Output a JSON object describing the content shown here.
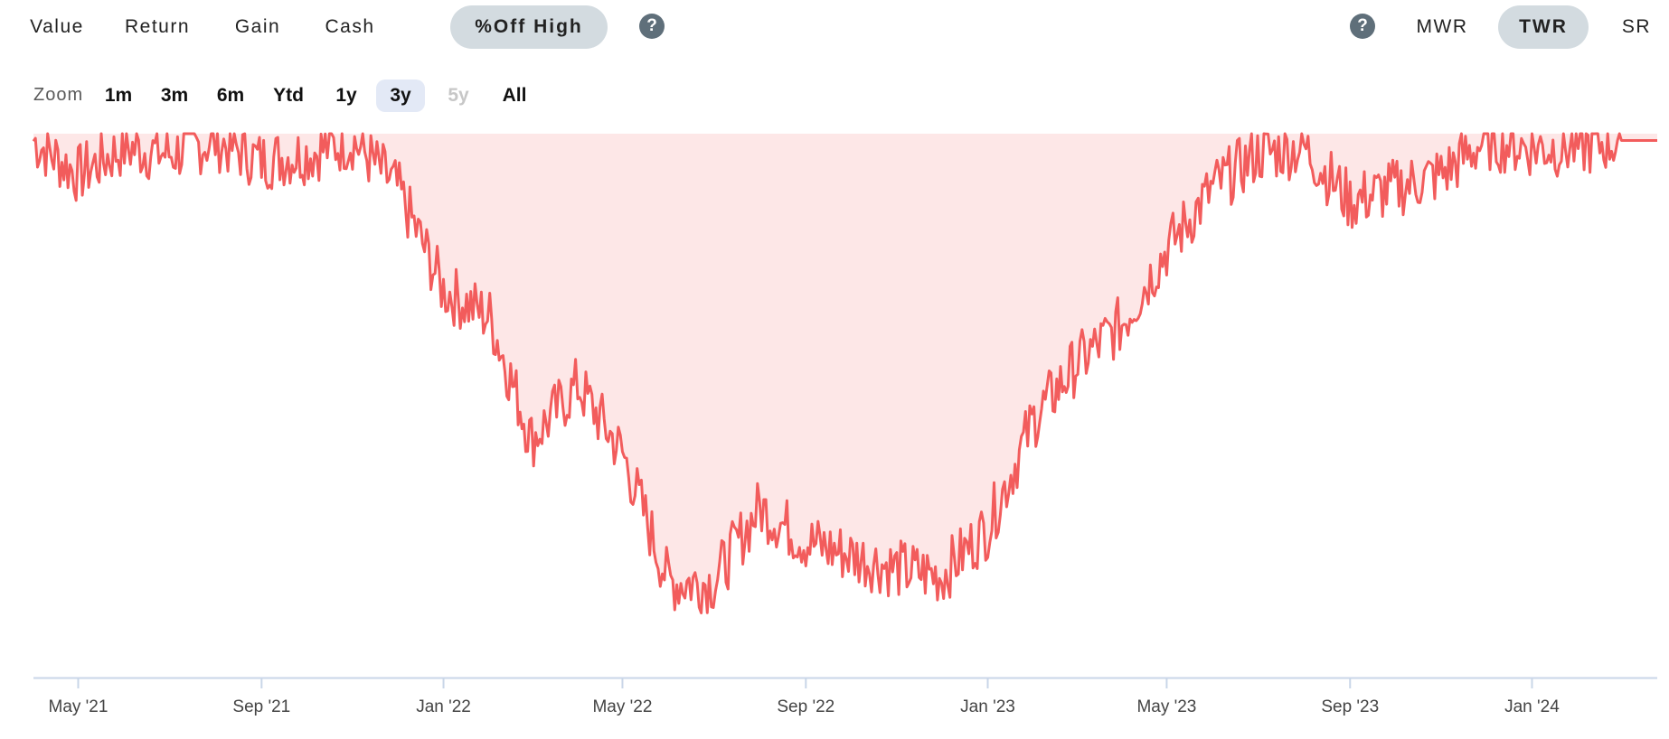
{
  "tabs": {
    "value": "Value",
    "return": "Return",
    "gain": "Gain",
    "cash": "Cash",
    "off_high": "%Off High"
  },
  "help_glyph": "?",
  "return_modes": {
    "mwr": "MWR",
    "twr": "TWR",
    "sr": "SR"
  },
  "zoom": {
    "label": "Zoom",
    "options": [
      "1m",
      "3m",
      "6m",
      "Ytd",
      "1y",
      "3y",
      "5y",
      "All"
    ],
    "selected": "3y",
    "disabled": "5y"
  },
  "colors": {
    "line": "#f25c5c",
    "fill": "#fde7e7",
    "axis": "#c9d6e8",
    "active_tab": "#d3dbe0"
  },
  "chart_data": {
    "type": "area",
    "title": "",
    "xlabel": "",
    "ylabel": "",
    "x_tick_labels": [
      "May '21",
      "Sep '21",
      "Jan '22",
      "May '22",
      "Sep '22",
      "Jan '23",
      "May '23",
      "Sep '23",
      "Jan '24"
    ],
    "x": [
      "2021-04",
      "2021-05",
      "2021-06",
      "2021-07",
      "2021-08",
      "2021-09",
      "2021-10",
      "2021-11",
      "2021-12",
      "2022-01",
      "2022-02",
      "2022-03",
      "2022-04",
      "2022-05",
      "2022-06",
      "2022-07",
      "2022-08",
      "2022-09",
      "2022-10",
      "2022-11",
      "2022-12",
      "2023-01",
      "2023-02",
      "2023-03",
      "2023-04",
      "2023-05",
      "2023-06",
      "2023-07",
      "2023-08",
      "2023-09",
      "2023-10",
      "2023-11",
      "2023-12",
      "2024-01",
      "2024-02",
      "2024-03"
    ],
    "values": [
      -1,
      -6,
      -2,
      -3,
      -1,
      -4,
      -3,
      -1,
      -8,
      -23,
      -27,
      -45,
      -37,
      -47,
      -66,
      -66,
      -55,
      -60,
      -62,
      -64,
      -65,
      -58,
      -42,
      -34,
      -28,
      -17,
      -8,
      -3,
      -2,
      -10,
      -8,
      -6,
      -1,
      -2,
      -2,
      -1
    ],
    "y_unit": "% off high",
    "ylim": [
      -80,
      0
    ],
    "grid": false,
    "legend": "none"
  }
}
